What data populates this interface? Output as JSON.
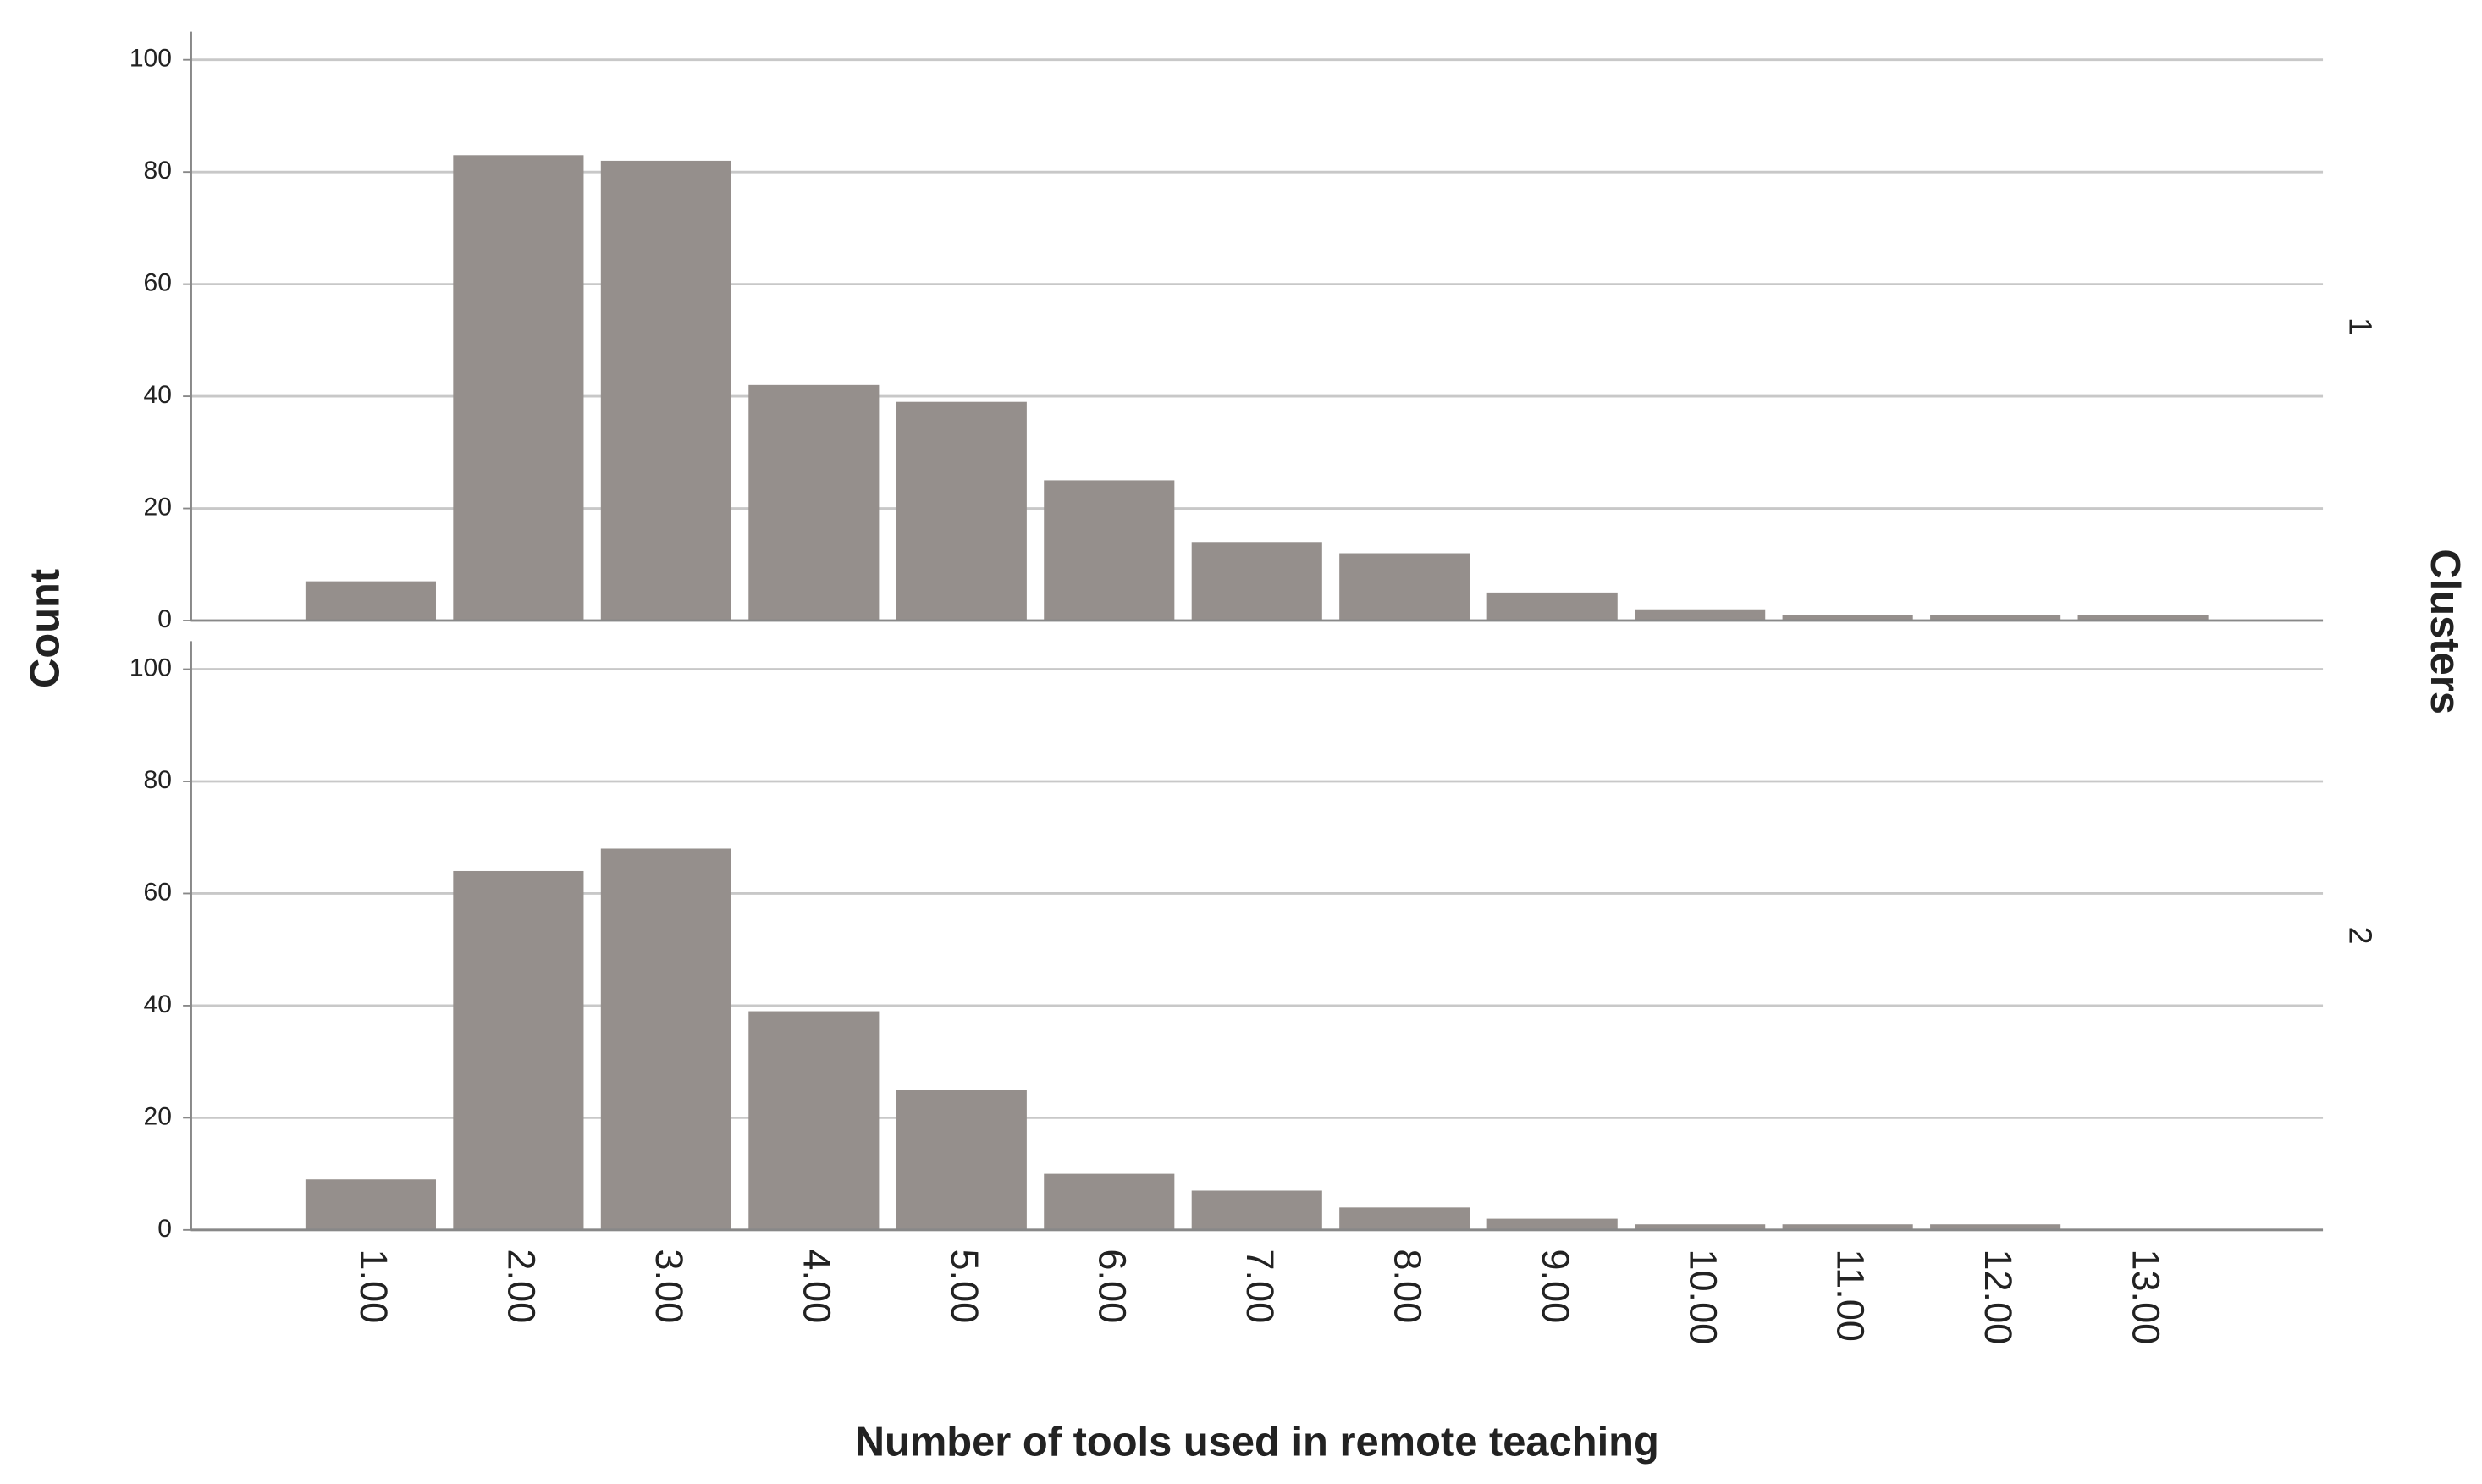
{
  "chart_data": {
    "type": "bar",
    "x_label": "Number of tools used in remote teaching",
    "y_label": "Count",
    "facet_label": "Clusters",
    "categories": [
      "1.00",
      "2.00",
      "3.00",
      "4.00",
      "5.00",
      "6.00",
      "7.00",
      "8.00",
      "9.00",
      "10.00",
      "11.00",
      "12.00",
      "13.00"
    ],
    "series": [
      {
        "name": "1",
        "color": "#958f8c",
        "values": [
          7,
          83,
          82,
          42,
          39,
          25,
          14,
          12,
          5,
          2,
          1,
          1,
          1
        ]
      },
      {
        "name": "2",
        "color": "#958f8c",
        "values": [
          9,
          64,
          68,
          39,
          25,
          10,
          7,
          4,
          2,
          1,
          1,
          1,
          0
        ]
      }
    ],
    "ylim": [
      0,
      105
    ],
    "yticks": [
      0,
      20,
      40,
      60,
      80,
      100
    ],
    "grid": true
  }
}
